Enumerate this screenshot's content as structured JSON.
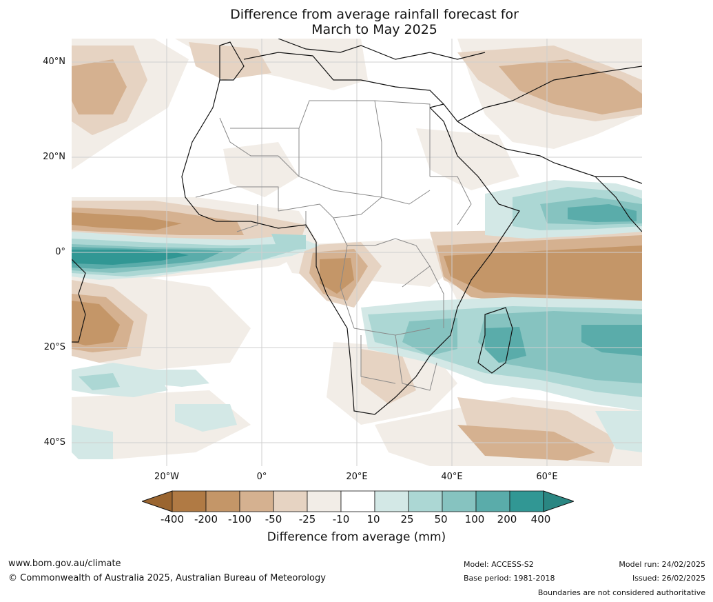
{
  "title": {
    "line1": "Difference from average rainfall forecast for",
    "line2": "March to May 2025"
  },
  "map": {
    "lat_labels": [
      "40°N",
      "20°N",
      "0°",
      "20°S",
      "40°S"
    ],
    "lon_labels": [
      "20°W",
      "0°",
      "20°E",
      "40°E",
      "60°E"
    ],
    "extent": {
      "lon_min": -40,
      "lon_max": 80,
      "lat_min": -45,
      "lat_max": 45
    }
  },
  "legend": {
    "ticks": [
      "-400",
      "-200",
      "-100",
      "-50",
      "-25",
      "-10",
      "10",
      "25",
      "50",
      "100",
      "200",
      "400"
    ],
    "colors": [
      "#9a6530",
      "#b07a44",
      "#c49668",
      "#d5b190",
      "#e6d3c2",
      "#f2ede7",
      "#ffffff",
      "#d3e8e6",
      "#acd7d4",
      "#86c3c0",
      "#5aacaa",
      "#319794",
      "#2a8682"
    ],
    "title": "Difference from average (mm)"
  },
  "footer": {
    "url": "www.bom.gov.au/climate",
    "copyright": "© Commonwealth of Australia 2025, Australian Bureau of Meteorology",
    "model": "Model: ACCESS-S2",
    "base_period": "Base period: 1981-2018",
    "model_run": "Model run: 24/02/2025",
    "issued": "Issued: 26/02/2025",
    "disclaimer": "Boundaries are not considered authoritative"
  }
}
